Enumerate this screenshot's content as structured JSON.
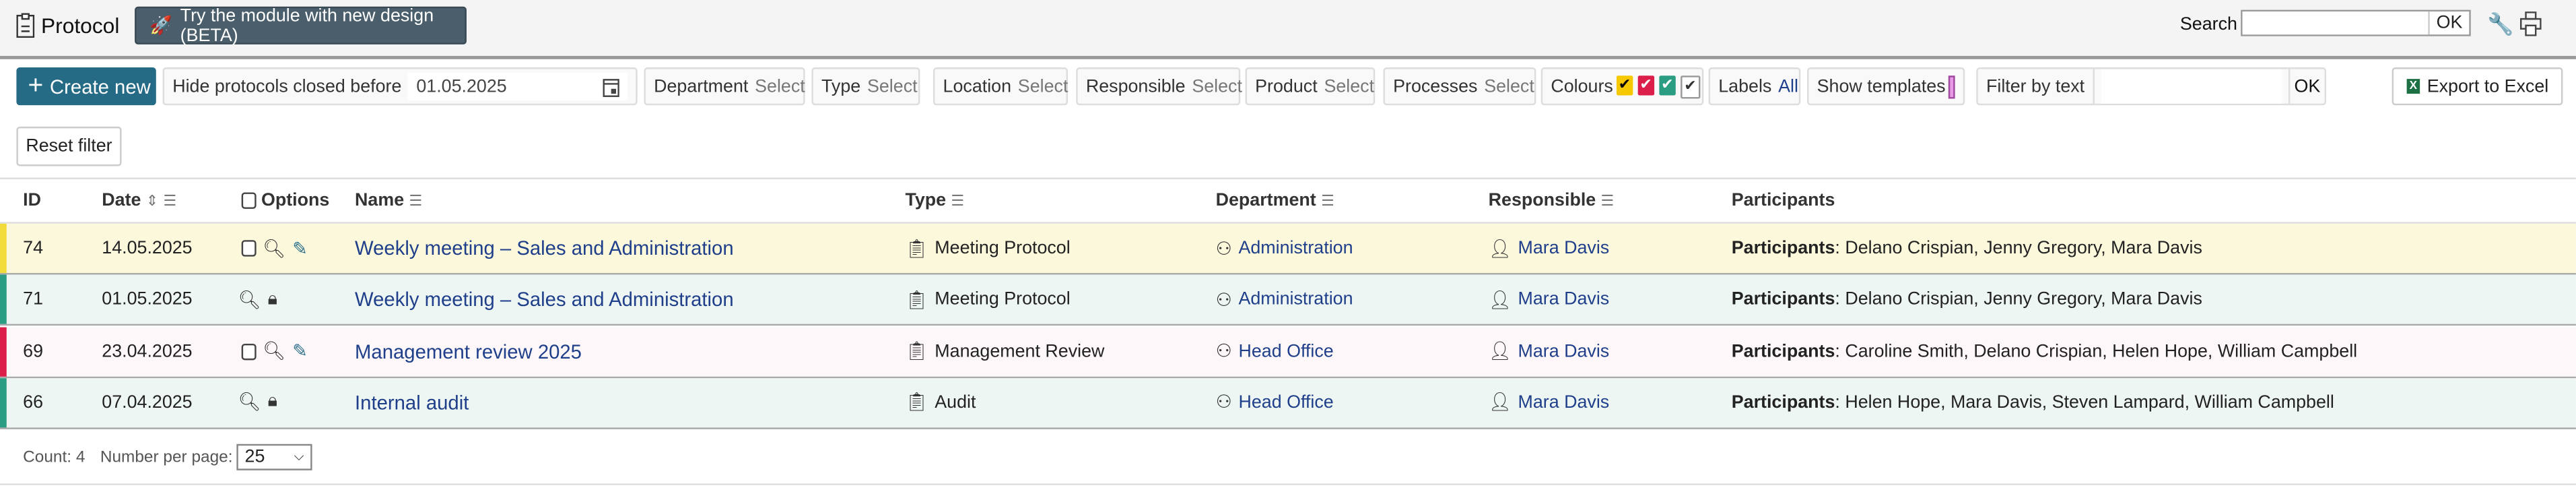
{
  "header": {
    "title": "Protocol",
    "beta_label": "Try the module with new design (BETA)",
    "search_label": "Search",
    "search_value": "",
    "search_ok": "OK"
  },
  "toolbar": {
    "create_label": "Create new",
    "hide_label": "Hide protocols closed before",
    "hide_date": "01.05.2025",
    "filters": [
      {
        "label": "Department",
        "value": "Select"
      },
      {
        "label": "Type",
        "value": "Select"
      },
      {
        "label": "Location",
        "value": "Select"
      },
      {
        "label": "Responsible",
        "value": "Select"
      },
      {
        "label": "Product",
        "value": "Select"
      },
      {
        "label": "Processes",
        "value": "Select"
      }
    ],
    "colours_label": "Colours",
    "colours": [
      "#f5c800",
      "#dc1f4a",
      "#2a9d82",
      "#ffffff"
    ],
    "labels_label": "Labels",
    "labels_value": "All",
    "templates_label": "Show templates",
    "templates_color": "#e89ae6",
    "filter_text_label": "Filter by text",
    "filter_text_value": "",
    "filter_ok": "OK",
    "export_label": "Export to Excel",
    "reset_label": "Reset filter"
  },
  "table": {
    "columns": {
      "id": "ID",
      "date": "Date",
      "options": "Options",
      "name": "Name",
      "type": "Type",
      "department": "Department",
      "responsible": "Responsible",
      "participants": "Participants"
    },
    "participants_prefix": "Participants",
    "rows": [
      {
        "id": "74",
        "date": "14.05.2025",
        "editable": true,
        "name": "Weekly meeting – Sales and Administration",
        "type": "Meeting Protocol",
        "department": "Administration",
        "responsible": "Mara Davis",
        "participants": "Delano Crispian, Jenny Gregory, Mara Davis",
        "color": "#f1dc3b",
        "bg": "#fcf8dc"
      },
      {
        "id": "71",
        "date": "01.05.2025",
        "editable": false,
        "name": "Weekly meeting – Sales and Administration",
        "type": "Meeting Protocol",
        "department": "Administration",
        "responsible": "Mara Davis",
        "participants": "Delano Crispian, Jenny Gregory, Mara Davis",
        "color": "#2a9d82",
        "bg": "#eef6f4"
      },
      {
        "id": "69",
        "date": "23.04.2025",
        "editable": true,
        "name": "Management review 2025",
        "type": "Management Review",
        "department": "Head Office",
        "responsible": "Mara Davis",
        "participants": "Caroline Smith, Delano Crispian, Helen Hope, William Campbell",
        "color": "#dc1f4a",
        "bg": "#fdf7f9"
      },
      {
        "id": "66",
        "date": "07.04.2025",
        "editable": false,
        "name": "Internal audit",
        "type": "Audit",
        "department": "Head Office",
        "responsible": "Mara Davis",
        "participants": "Helen Hope, Mara Davis, Steven Lampard, William Campbell",
        "color": "#2a9d82",
        "bg": "#eef6f4"
      }
    ]
  },
  "footer": {
    "count_label": "Count: 4",
    "per_page_label": "Number per page:",
    "per_page_value": "25"
  }
}
